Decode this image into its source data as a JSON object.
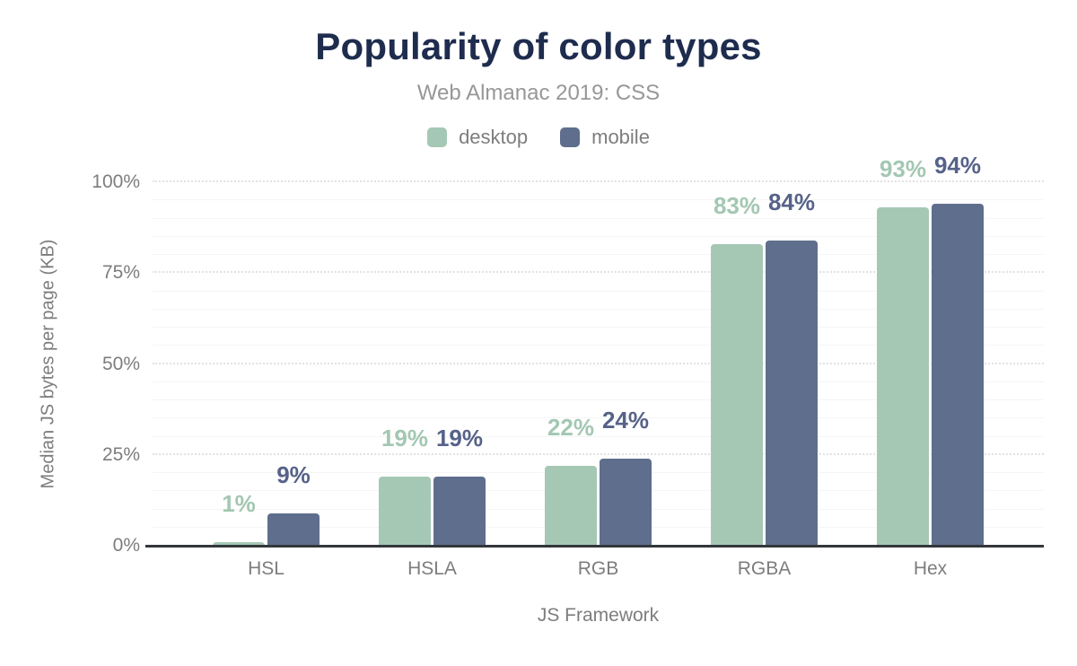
{
  "title": "Popularity of color types",
  "subtitle": "Web Almanac 2019: CSS",
  "colors": {
    "title_text": "#1e2c4e",
    "subtitle_text": "#979797",
    "axis_text": "#7d7d7d",
    "axis_line": "#33363b",
    "grid_major": "#e2e2e2",
    "grid_minor": "#f5f5f5",
    "desktop_bar": "#a5c8b5",
    "mobile_bar": "#5f6e8c",
    "desktop_label": "#a3c7b2",
    "mobile_label": "#566288"
  },
  "chart_data": {
    "type": "bar",
    "title": "Popularity of color types",
    "subtitle": "Web Almanac 2019: CSS",
    "xlabel": "JS Framework",
    "ylabel": "Median JS bytes per page (KB)",
    "categories": [
      "HSL",
      "HSLA",
      "RGB",
      "RGBA",
      "Hex"
    ],
    "series": [
      {
        "name": "desktop",
        "color": "#a5c8b5",
        "label_color": "#a3c7b2",
        "values": [
          1,
          19,
          22,
          83,
          93
        ],
        "data_labels": [
          "1%",
          "19%",
          "22%",
          "83%",
          "93%"
        ]
      },
      {
        "name": "mobile",
        "color": "#5f6e8c",
        "label_color": "#566288",
        "values": [
          9,
          19,
          24,
          84,
          94
        ],
        "data_labels": [
          "9%",
          "19%",
          "24%",
          "84%",
          "94%"
        ]
      }
    ],
    "ylim": [
      0,
      100
    ],
    "yticks": [
      {
        "value": 0,
        "label": "0%"
      },
      {
        "value": 25,
        "label": "25%"
      },
      {
        "value": 50,
        "label": "50%"
      },
      {
        "value": 75,
        "label": "75%"
      },
      {
        "value": 100,
        "label": "100%"
      }
    ],
    "grid": {
      "minor_step": 5,
      "major_step": 25,
      "major_style": "dotted",
      "orientation": "horizontal"
    },
    "legend_position": "top"
  }
}
